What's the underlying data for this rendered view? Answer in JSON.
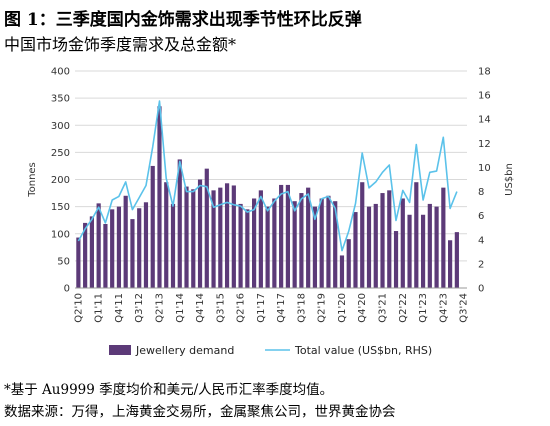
{
  "title": "图 1：三季度国内金饰需求出现季节性环比反弹",
  "subtitle": "中国市场金饰季度需求及总金额*",
  "footnote": "*基于 Au9999 季度均价和美元/人民币汇率季度均值。",
  "source": "数据来源：万得，上海黄金交易所，金属聚焦公司，世界黄金协会",
  "colors": {
    "bar": "#5c3a78",
    "line": "#5bc2ea",
    "grid": "#d9d9d9"
  },
  "chart_data": {
    "type": "bar",
    "quarters": [
      "Q2'10",
      "Q3'10",
      "Q4'10",
      "Q1'11",
      "Q2'11",
      "Q3'11",
      "Q4'11",
      "Q1'12",
      "Q2'12",
      "Q3'12",
      "Q4'12",
      "Q1'13",
      "Q2'13",
      "Q3'13",
      "Q4'13",
      "Q1'14",
      "Q2'14",
      "Q3'14",
      "Q4'14",
      "Q1'15",
      "Q2'15",
      "Q3'15",
      "Q4'15",
      "Q1'16",
      "Q2'16",
      "Q3'16",
      "Q4'16",
      "Q1'17",
      "Q2'17",
      "Q3'17",
      "Q4'17",
      "Q1'18",
      "Q2'18",
      "Q3'18",
      "Q4'18",
      "Q1'19",
      "Q2'19",
      "Q3'19",
      "Q4'19",
      "Q1'20",
      "Q2'20",
      "Q3'20",
      "Q4'20",
      "Q1'21",
      "Q2'21",
      "Q3'21",
      "Q4'21",
      "Q1'22",
      "Q2'22",
      "Q3'22",
      "Q4'22",
      "Q1'23",
      "Q2'23",
      "Q3'23",
      "Q4'23",
      "Q1'24",
      "Q2'24",
      "Q3'24"
    ],
    "x_tick_labels": [
      "Q2'10",
      "Q1'11",
      "Q4'11",
      "Q3'12",
      "Q2'13",
      "Q1'14",
      "Q4'14",
      "Q3'15",
      "Q2'16",
      "Q1'17",
      "Q4'17",
      "Q3'18",
      "Q2'19",
      "Q1'20",
      "Q4'20",
      "Q3'21",
      "Q2'22",
      "Q1'23",
      "Q4'23",
      "Q3'24"
    ],
    "series": [
      {
        "name": "Jewellery demand",
        "axis": "left",
        "type": "bar",
        "values": [
          93,
          120,
          132,
          156,
          118,
          145,
          150,
          170,
          127,
          147,
          158,
          225,
          335,
          195,
          155,
          237,
          187,
          182,
          200,
          220,
          180,
          185,
          193,
          189,
          155,
          145,
          165,
          180,
          150,
          165,
          190,
          190,
          160,
          175,
          185,
          150,
          165,
          170,
          160,
          60,
          90,
          140,
          195,
          150,
          155,
          175,
          180,
          105,
          165,
          135,
          195,
          135,
          155,
          150,
          185,
          88,
          103,
          null
        ]
      },
      {
        "name": "Total value (US$bn, RHS)",
        "axis": "right",
        "type": "line",
        "values": [
          3.9,
          4.9,
          5.7,
          6.7,
          5.4,
          7.3,
          7.6,
          8.8,
          6.5,
          7.5,
          8.5,
          11.7,
          15.5,
          9.1,
          6.8,
          10.5,
          8.0,
          8.0,
          8.5,
          8.4,
          6.7,
          6.9,
          7.1,
          6.9,
          6.8,
          6.3,
          6.5,
          7.6,
          6.4,
          7.2,
          7.8,
          8.0,
          6.4,
          7.4,
          7.8,
          5.7,
          7.4,
          7.6,
          6.6,
          3.1,
          4.7,
          7.0,
          11.2,
          8.3,
          8.8,
          9.6,
          10.2,
          5.6,
          8.1,
          7.1,
          11.9,
          7.3,
          9.6,
          9.7,
          12.5,
          6.6,
          8.0,
          null
        ]
      }
    ],
    "yaxis_left": {
      "label": "Tonnes",
      "min": 0,
      "max": 400,
      "ticks": [
        0,
        50,
        100,
        150,
        200,
        250,
        300,
        350,
        400
      ]
    },
    "yaxis_right": {
      "label": "US$bn",
      "min": 0,
      "max": 18,
      "ticks": [
        0,
        2,
        4,
        6,
        8,
        10,
        12,
        14,
        16,
        18
      ]
    },
    "grid": true,
    "legend_position": "bottom"
  }
}
